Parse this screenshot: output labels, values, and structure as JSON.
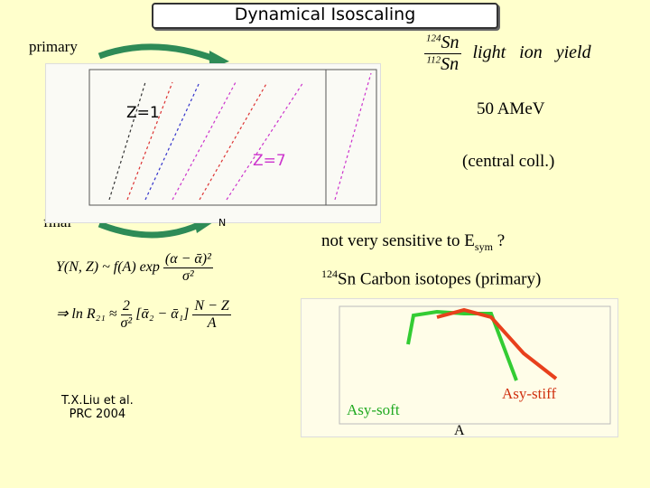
{
  "title": "Dynamical Isoscaling",
  "top_figure": {
    "label_top": "primary",
    "label_bottom": "final",
    "z_low": "Z=1",
    "z_high": "Z=7",
    "x_axis": "N"
  },
  "ratio": {
    "numerator": {
      "mass": "124",
      "element": "Sn"
    },
    "denominator": {
      "mass": "112",
      "element": "Sn"
    },
    "text": "light   ion   yield"
  },
  "conditions": {
    "energy": "50 AMeV",
    "collision": "(central coll.)"
  },
  "formulas": {
    "yield": {
      "lhs": "Y(N, Z) ~ f(A) exp",
      "numerator": "(α − ᾱ)²",
      "denominator": "σ²"
    },
    "log_ratio": {
      "lhs": "⇒ ln R₂₁ ≈",
      "coef_num": "2",
      "coef_den": "σ²",
      "alpha": "[ᾱ₂ − ᾱ₁]",
      "frac_num": "N − Z",
      "frac_den": "A"
    }
  },
  "reference": {
    "authors": "T.X.Liu et al.",
    "journal": "PRC 2004"
  },
  "sensitivity": {
    "text": "not very sensitive to E",
    "subscript": "sym",
    "suffix": " ?"
  },
  "bottom_chart": {
    "title_mass": "124",
    "title": "Sn Carbon isotopes (primary)",
    "soft_label": "Asy-soft",
    "stiff_label": "Asy-stiff",
    "x_axis": "A"
  }
}
